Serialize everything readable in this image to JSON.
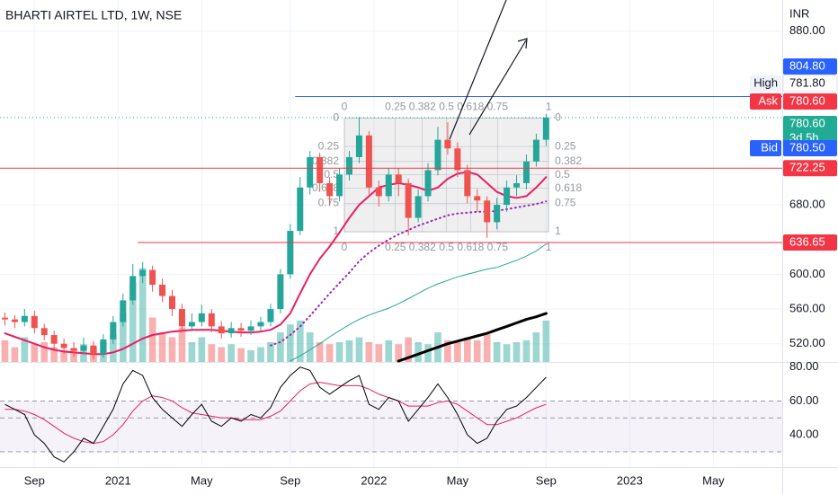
{
  "chart_data": {
    "type": "candlestick",
    "title": "BHARTI AIRTEL LTD, 1W, NSE",
    "currency": "INR",
    "x": [
      -6,
      -4,
      -2,
      0,
      2,
      4,
      6,
      8,
      10,
      12,
      14,
      16,
      18,
      20,
      22,
      24,
      26,
      28,
      30,
      32,
      34,
      36,
      38,
      40,
      42,
      44,
      46,
      48,
      50,
      52,
      54,
      56,
      58,
      60,
      62,
      64,
      66,
      68,
      70,
      72,
      74,
      76,
      78,
      80,
      82,
      84,
      86,
      88,
      90,
      92,
      94,
      96,
      98,
      100,
      102,
      104
    ],
    "open": [
      550,
      548,
      545,
      552,
      538,
      530,
      520,
      515,
      512,
      518,
      508,
      525,
      545,
      570,
      598,
      605,
      588,
      575,
      560,
      540,
      545,
      555,
      540,
      532,
      538,
      535,
      540,
      545,
      560,
      600,
      650,
      700,
      735,
      705,
      690,
      715,
      735,
      760,
      700,
      690,
      715,
      705,
      665,
      690,
      720,
      755,
      745,
      720,
      690,
      685,
      660,
      680,
      700,
      705,
      730,
      755
    ],
    "high": [
      556,
      553,
      560,
      558,
      543,
      535,
      526,
      522,
      527,
      523,
      531,
      552,
      578,
      612,
      614,
      610,
      595,
      582,
      566,
      555,
      565,
      560,
      546,
      545,
      544,
      547,
      551,
      566,
      606,
      658,
      712,
      742,
      740,
      712,
      722,
      742,
      781,
      765,
      708,
      722,
      722,
      710,
      698,
      728,
      770,
      775,
      752,
      726,
      698,
      690,
      688,
      708,
      714,
      738,
      762,
      785
    ],
    "low": [
      541,
      538,
      540,
      532,
      524,
      514,
      508,
      505,
      507,
      502,
      504,
      520,
      540,
      565,
      590,
      580,
      568,
      552,
      533,
      534,
      540,
      533,
      526,
      527,
      528,
      530,
      535,
      540,
      555,
      595,
      645,
      692,
      695,
      680,
      684,
      708,
      728,
      692,
      678,
      684,
      690,
      645,
      660,
      684,
      714,
      738,
      712,
      682,
      672,
      642,
      652,
      672,
      690,
      698,
      724,
      748
    ],
    "close": [
      548,
      545,
      552,
      538,
      530,
      520,
      515,
      512,
      518,
      508,
      525,
      545,
      570,
      598,
      605,
      588,
      575,
      560,
      540,
      545,
      555,
      540,
      532,
      538,
      535,
      540,
      545,
      560,
      600,
      650,
      700,
      735,
      705,
      690,
      715,
      735,
      760,
      700,
      690,
      715,
      705,
      665,
      690,
      720,
      755,
      745,
      720,
      690,
      685,
      660,
      680,
      700,
      705,
      730,
      755,
      780.6
    ],
    "volume": [
      22,
      15,
      25,
      18,
      20,
      15,
      12,
      14,
      18,
      15,
      20,
      28,
      50,
      80,
      95,
      45,
      30,
      25,
      35,
      20,
      25,
      18,
      15,
      18,
      14,
      12,
      15,
      20,
      30,
      38,
      42,
      30,
      20,
      18,
      20,
      22,
      25,
      20,
      18,
      22,
      18,
      25,
      20,
      18,
      30,
      22,
      20,
      25,
      22,
      28,
      20,
      18,
      20,
      22,
      30,
      42
    ],
    "volume_lim": [
      0,
      100
    ],
    "colors": {
      "up": "#26a69a",
      "down": "#ef5350"
    },
    "xlim": [
      -7,
      152
    ],
    "xticks": [
      {
        "value": 0,
        "label": "Sep"
      },
      {
        "value": 17,
        "label": "2021"
      },
      {
        "value": 34,
        "label": "May"
      },
      {
        "value": 52,
        "label": "Sep"
      },
      {
        "value": 69,
        "label": "2022"
      },
      {
        "value": 86,
        "label": "May"
      },
      {
        "value": 104,
        "label": "Sep"
      },
      {
        "value": 121,
        "label": "2023"
      },
      {
        "value": 138,
        "label": "May"
      }
    ],
    "ylim": [
      499,
      916
    ],
    "yticks": [
      {
        "value": 880,
        "label": "880.00"
      },
      {
        "value": 680,
        "label": "680.00"
      },
      {
        "value": 600,
        "label": "600.00"
      },
      {
        "value": 560,
        "label": "560.00"
      },
      {
        "value": 520,
        "label": "520.00"
      }
    ],
    "grid": true,
    "moving_averages": [
      {
        "color": "#e91e63",
        "style": "solid",
        "width": 2,
        "values": [
          532,
          528,
          524,
          520,
          516,
          513,
          511,
          510,
          509,
          508,
          508,
          510,
          514,
          520,
          526,
          530,
          532,
          534,
          535,
          536,
          536,
          536,
          535,
          534,
          533,
          533,
          534,
          536,
          542,
          555,
          578,
          600,
          618,
          632,
          648,
          665,
          680,
          690,
          700,
          703,
          705,
          703,
          700,
          696,
          700,
          710,
          716,
          718,
          715,
          705,
          695,
          690,
          688,
          690,
          700,
          712
        ]
      },
      {
        "color": "#9c27b0",
        "style": "dotted",
        "width": 2,
        "values": [
          null,
          null,
          null,
          null,
          null,
          null,
          null,
          null,
          null,
          null,
          null,
          null,
          null,
          null,
          null,
          null,
          null,
          null,
          null,
          null,
          null,
          null,
          null,
          null,
          null,
          null,
          null,
          518,
          522,
          530,
          540,
          552,
          565,
          578,
          590,
          602,
          615,
          625,
          633,
          640,
          646,
          651,
          656,
          660,
          664,
          668,
          670,
          671,
          672,
          672,
          673,
          675,
          677,
          679,
          681,
          684
        ]
      },
      {
        "color": "#26a69a",
        "style": "solid",
        "width": 1,
        "values": [
          null,
          null,
          null,
          null,
          null,
          null,
          null,
          null,
          null,
          null,
          null,
          null,
          null,
          null,
          null,
          null,
          null,
          null,
          null,
          null,
          null,
          null,
          null,
          null,
          null,
          null,
          null,
          null,
          null,
          500,
          506,
          513,
          520,
          528,
          535,
          542,
          548,
          553,
          557,
          561,
          566,
          572,
          578,
          584,
          589,
          593,
          597,
          600,
          603,
          606,
          608,
          612,
          616,
          621,
          627,
          635
        ]
      },
      {
        "color": "#000000",
        "style": "solid",
        "width": 3,
        "values": [
          null,
          null,
          null,
          null,
          null,
          null,
          null,
          null,
          null,
          null,
          null,
          null,
          null,
          null,
          null,
          null,
          null,
          null,
          null,
          null,
          null,
          null,
          null,
          null,
          null,
          null,
          null,
          null,
          null,
          null,
          null,
          null,
          null,
          null,
          null,
          null,
          null,
          null,
          null,
          null,
          500,
          504,
          508,
          512,
          516,
          520,
          523,
          526,
          529,
          532,
          536,
          540,
          544,
          548,
          551,
          555
        ]
      }
    ],
    "price_tags": [
      {
        "value": 804.8,
        "value_label": "804.80",
        "color": "#2962ff",
        "line_start": 53,
        "line_style": "solid"
      },
      {
        "name": "High",
        "value": 781.8,
        "value_label": "781.80",
        "color": "#ffffff"
      },
      {
        "name": "Ask",
        "value": 780.6,
        "value_label": "780.60",
        "color": "#f23645"
      },
      {
        "value": 780.6,
        "value_label": "780.60",
        "note": "3d 5h",
        "color": "#22ab94",
        "line_start": -7,
        "line_style": "dotted"
      },
      {
        "name": "Bid",
        "value": 780.5,
        "value_label": "780.50",
        "color": "#2962ff"
      },
      {
        "value": 722.25,
        "value_label": "722.25",
        "color": "#f23645",
        "line_start": -7,
        "line_style": "solid"
      },
      {
        "value": 636.65,
        "value_label": "636.65",
        "color": "#f23645",
        "line_start": 21,
        "line_style": "solid"
      }
    ],
    "fib": {
      "levels": [
        0,
        0.25,
        0.382,
        0.5,
        0.618,
        0.75,
        1
      ],
      "price": [
        780,
        649
      ],
      "x": [
        63,
        104.5
      ]
    },
    "rsi": {
      "ylim": [
        21,
        83
      ],
      "yticks": [
        {
          "value": 80,
          "label": "80.00"
        },
        {
          "value": 60,
          "label": "60.00"
        },
        {
          "value": 40,
          "label": "40.00"
        }
      ],
      "band": [
        30,
        60
      ],
      "levels": [
        60,
        50,
        30
      ],
      "color": "#000000",
      "ma_color": "#e91e63",
      "values": [
        58,
        55,
        52,
        40,
        35,
        27,
        24,
        30,
        38,
        35,
        45,
        55,
        70,
        78,
        75,
        62,
        55,
        50,
        45,
        52,
        58,
        48,
        45,
        50,
        48,
        52,
        50,
        56,
        68,
        75,
        80,
        78,
        68,
        64,
        68,
        72,
        75,
        58,
        55,
        62,
        60,
        48,
        55,
        62,
        70,
        62,
        52,
        40,
        35,
        38,
        48,
        55,
        57,
        62,
        68,
        74
      ],
      "ma_values": [
        55,
        55,
        54,
        52,
        49,
        45,
        41,
        38,
        36,
        35,
        36,
        40,
        46,
        54,
        60,
        63,
        62,
        60,
        56,
        53,
        52,
        51,
        50,
        50,
        49,
        49,
        49,
        51,
        54,
        60,
        66,
        70,
        71,
        70,
        69,
        69,
        69,
        67,
        64,
        62,
        60,
        57,
        57,
        57,
        59,
        60,
        58,
        54,
        50,
        46,
        46,
        48,
        50,
        53,
        56,
        58
      ]
    }
  }
}
